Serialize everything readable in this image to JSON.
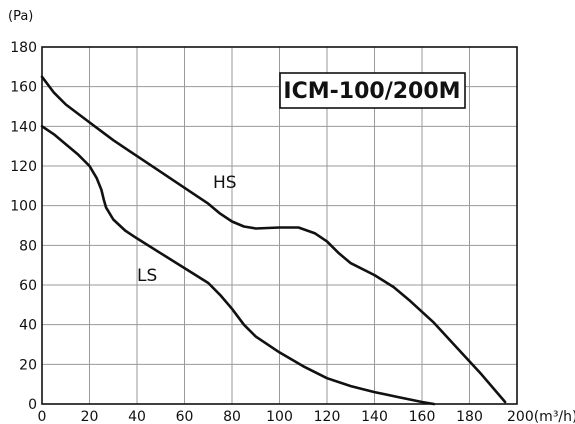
{
  "chart_data": {
    "type": "line",
    "title": "ICM-100/200M",
    "xlabel": "(m³/h)",
    "ylabel": "(Pa)",
    "xlim": [
      0,
      200
    ],
    "ylim": [
      0,
      180
    ],
    "x_ticks": [
      0,
      20,
      40,
      60,
      80,
      100,
      120,
      140,
      160,
      180,
      200
    ],
    "y_ticks": [
      0,
      20,
      40,
      60,
      80,
      100,
      120,
      140,
      160,
      180
    ],
    "x_tick_labels": [
      "0",
      "20",
      "40",
      "60",
      "80",
      "100",
      "120",
      "140",
      "160",
      "180",
      "200(m³/h)"
    ],
    "y_tick_labels": [
      "0",
      "20",
      "40",
      "60",
      "80",
      "100",
      "120",
      "140",
      "160",
      "180"
    ],
    "grid": true,
    "series": [
      {
        "name": "HS",
        "points": [
          [
            0,
            165
          ],
          [
            5,
            157
          ],
          [
            10,
            151
          ],
          [
            20,
            142
          ],
          [
            30,
            133
          ],
          [
            40,
            125
          ],
          [
            50,
            117
          ],
          [
            60,
            109
          ],
          [
            70,
            101
          ],
          [
            75,
            96
          ],
          [
            80,
            92
          ],
          [
            85,
            89.5
          ],
          [
            90,
            88.5
          ],
          [
            100,
            89
          ],
          [
            108,
            89
          ],
          [
            115,
            86
          ],
          [
            120,
            82
          ],
          [
            125,
            76
          ],
          [
            130,
            71
          ],
          [
            140,
            65
          ],
          [
            148,
            59
          ],
          [
            155,
            52
          ],
          [
            165,
            41
          ],
          [
            175,
            28
          ],
          [
            185,
            15
          ],
          [
            195,
            1
          ]
        ]
      },
      {
        "name": "LS",
        "points": [
          [
            0,
            140
          ],
          [
            5,
            136
          ],
          [
            10,
            131
          ],
          [
            15,
            126
          ],
          [
            20,
            120
          ],
          [
            23,
            114
          ],
          [
            25,
            108
          ],
          [
            26,
            103
          ],
          [
            27,
            99
          ],
          [
            30,
            93
          ],
          [
            35,
            87.5
          ],
          [
            40,
            83.5
          ],
          [
            50,
            76
          ],
          [
            60,
            68.5
          ],
          [
            70,
            61
          ],
          [
            75,
            55
          ],
          [
            80,
            48
          ],
          [
            85,
            40
          ],
          [
            90,
            34
          ],
          [
            100,
            26
          ],
          [
            110,
            19
          ],
          [
            120,
            13
          ],
          [
            130,
            9
          ],
          [
            135,
            7.5
          ],
          [
            140,
            6
          ],
          [
            150,
            3.5
          ],
          [
            160,
            1
          ],
          [
            165,
            0
          ]
        ]
      }
    ]
  }
}
